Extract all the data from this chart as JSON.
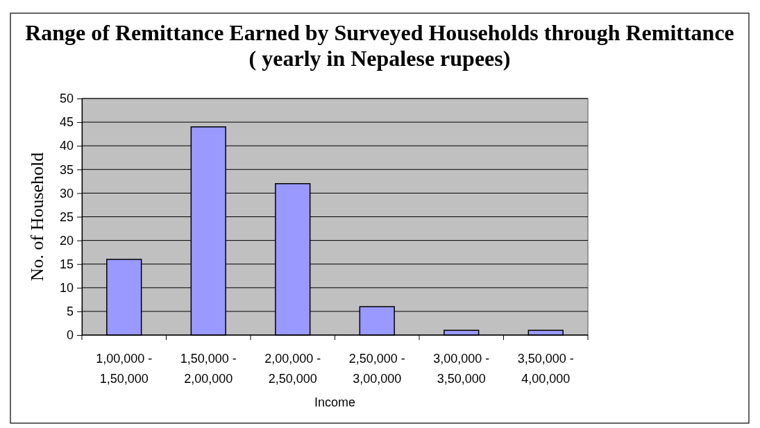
{
  "chart_data": {
    "type": "bar",
    "title": "Range of Remittance Earned by Surveyed Households through Remittance ( yearly in Nepalese rupees)",
    "xlabel": "Income",
    "ylabel": "No. of Household",
    "categories": [
      "1,00,000 - 1,50,000",
      "1,50,000 - 2,00,000",
      "2,00,000 - 2,50,000",
      "2,50,000 - 3,00,000",
      "3,00,000 - 3,50,000",
      "3,50,000 - 4,00,000"
    ],
    "values": [
      16,
      44,
      32,
      6,
      1,
      1
    ],
    "color": "#9999ff",
    "ylim": [
      0,
      50
    ],
    "yticks": [
      0,
      5,
      10,
      15,
      20,
      25,
      30,
      35,
      40,
      45,
      50
    ],
    "grid": "y"
  }
}
